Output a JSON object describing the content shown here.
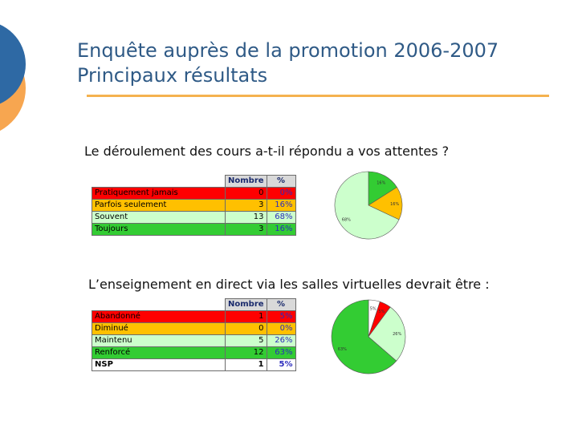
{
  "title": {
    "line1": "Enquête auprès de la promotion 2006-2007",
    "line2": "Principaux résultats"
  },
  "colors": {
    "title": "#2f5a86",
    "rule": "#f5b24f",
    "deco_blue": "#2e69a4",
    "deco_orange": "#f7a650",
    "red": "#ff0000",
    "yellow": "#ffc000",
    "light_green": "#ccffcc",
    "green": "#33cc33"
  },
  "q1": {
    "question": "Le déroulement des cours a-t-il répondu a vos attentes ?",
    "headers": [
      "Nombre",
      "%"
    ],
    "rows": [
      {
        "label": "Pratiquement jamais",
        "count": "0",
        "pct": "0%",
        "color": "red"
      },
      {
        "label": "Parfois seulement",
        "count": "3",
        "pct": "16%",
        "color": "yellow"
      },
      {
        "label": "Souvent",
        "count": "13",
        "pct": "68%",
        "color": "lgreen"
      },
      {
        "label": "Toujours",
        "count": "3",
        "pct": "16%",
        "color": "green"
      }
    ]
  },
  "q2": {
    "question": "L’enseignement en direct via les salles virtuelles devrait être :",
    "headers": [
      "Nombre",
      "%"
    ],
    "rows": [
      {
        "label": "Abandonné",
        "count": "1",
        "pct": "5%",
        "color": "red"
      },
      {
        "label": "Diminué",
        "count": "0",
        "pct": "0%",
        "color": "yellow"
      },
      {
        "label": "Maintenu",
        "count": "5",
        "pct": "26%",
        "color": "lgreen"
      },
      {
        "label": "Renforcé",
        "count": "12",
        "pct": "63%",
        "color": "green"
      },
      {
        "label": "NSP",
        "count": "1",
        "pct": "5%",
        "color": "white"
      }
    ]
  },
  "chart_data": [
    {
      "type": "pie",
      "slices": [
        {
          "label": "16%",
          "value": 16,
          "color": "#33cc33"
        },
        {
          "label": "16%",
          "value": 16,
          "color": "#ffc000"
        },
        {
          "label": "68%",
          "value": 68,
          "color": "#ccffcc"
        }
      ]
    },
    {
      "type": "pie",
      "slices": [
        {
          "label": "5%",
          "value": 5,
          "color": "#ffffff"
        },
        {
          "label": "5%",
          "value": 5,
          "color": "#ff0000"
        },
        {
          "label": "26%",
          "value": 26,
          "color": "#ccffcc"
        },
        {
          "label": "63%",
          "value": 63,
          "color": "#33cc33"
        }
      ]
    }
  ]
}
